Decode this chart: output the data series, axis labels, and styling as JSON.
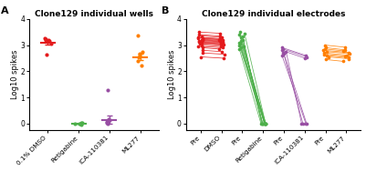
{
  "panel_A_title": "Clone129 individual wells",
  "panel_B_title": "Clone129 individual electrodes",
  "ylabel": "Log10 spikes",
  "colors": {
    "DMSO": "#e41a1c",
    "Retigabine": "#4daf4a",
    "ICA110381": "#984ea3",
    "ML277": "#ff7f00"
  },
  "panel_A": {
    "DMSO": [
      2.65,
      3.05,
      3.15,
      3.18,
      3.2,
      3.22,
      3.25
    ],
    "Retigabine": [
      -0.03,
      -0.01,
      0.0,
      0.01,
      0.02,
      0.03
    ],
    "ICA110381": [
      0.0,
      0.02,
      0.05,
      0.08,
      0.12,
      0.18,
      1.28
    ],
    "ML277": [
      2.22,
      2.38,
      2.52,
      2.6,
      2.68,
      2.75,
      3.38
    ]
  },
  "panel_A_means": {
    "DMSO": 3.1,
    "Retigabine": 0.0,
    "ICA110381": 0.15,
    "ML277": 2.55
  },
  "panel_A_sems": {
    "DMSO": 0.07,
    "Retigabine": 0.005,
    "ICA110381": 0.17,
    "ML277": 0.13
  },
  "panel_B_DMSO_pre": [
    2.55,
    2.7,
    2.8,
    2.9,
    2.95,
    3.0,
    3.05,
    3.08,
    3.1,
    3.12,
    3.15,
    3.18,
    3.2,
    3.22,
    3.25,
    3.28,
    3.3,
    3.35,
    3.4,
    3.5
  ],
  "panel_B_DMSO_post": [
    2.5,
    2.65,
    2.75,
    2.85,
    2.9,
    2.95,
    3.0,
    3.02,
    3.05,
    3.08,
    3.1,
    3.12,
    3.15,
    3.18,
    3.2,
    3.22,
    3.25,
    3.3,
    3.35,
    3.45
  ],
  "panel_B_Ret_pre": [
    2.85,
    2.9,
    2.95,
    3.0,
    3.05,
    3.1,
    3.15,
    3.2,
    3.3,
    3.35,
    3.4,
    3.45,
    3.5
  ],
  "panel_B_Ret_post": [
    0.0,
    0.0,
    0.0,
    0.0,
    0.0,
    0.0,
    0.0,
    0.0,
    0.0,
    0.0,
    0.0,
    0.0,
    0.0
  ],
  "panel_B_ICA_pre": [
    2.6,
    2.68,
    2.72,
    2.75,
    2.8,
    2.85,
    2.9
  ],
  "panel_B_ICA_post": [
    0.0,
    0.0,
    0.0,
    0.0,
    2.5,
    2.55,
    2.6
  ],
  "panel_B_ML_pre": [
    2.45,
    2.55,
    2.6,
    2.65,
    2.7,
    2.75,
    2.8,
    2.85,
    2.9,
    3.0
  ],
  "panel_B_ML_post": [
    2.38,
    2.48,
    2.52,
    2.58,
    2.62,
    2.68,
    2.72,
    2.78,
    2.82,
    2.92
  ]
}
